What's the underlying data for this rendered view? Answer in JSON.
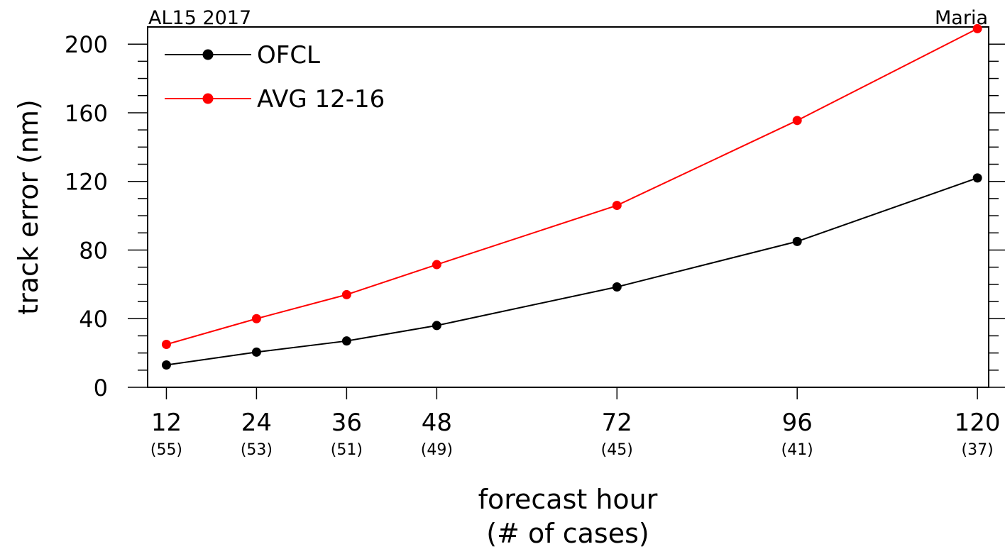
{
  "chart_data": {
    "type": "line",
    "title_left": "AL15 2017",
    "title_right": "Maria",
    "ylabel": "track error (nm)",
    "xlabel_line1": "forecast hour",
    "xlabel_line2": "(# of cases)",
    "ylim": [
      0,
      210
    ],
    "xlim": [
      9.5,
      121.5
    ],
    "y_ticks": [
      0,
      40,
      80,
      120,
      160,
      200
    ],
    "x": [
      12,
      24,
      36,
      48,
      72,
      96,
      120
    ],
    "x_tick_labels": [
      "12",
      "24",
      "36",
      "48",
      "72",
      "96",
      "120"
    ],
    "case_counts": [
      "(55)",
      "(53)",
      "(51)",
      "(49)",
      "(45)",
      "(41)",
      "(37)"
    ],
    "grid": false,
    "legend_position": "top-left",
    "series": [
      {
        "name": "OFCL",
        "color": "#000000",
        "values": [
          13,
          20.5,
          27,
          36,
          58.5,
          85,
          122
        ]
      },
      {
        "name": "AVG 12-16",
        "color": "#ff0000",
        "values": [
          25,
          40,
          54,
          71.5,
          106,
          155.5,
          209
        ]
      }
    ]
  }
}
